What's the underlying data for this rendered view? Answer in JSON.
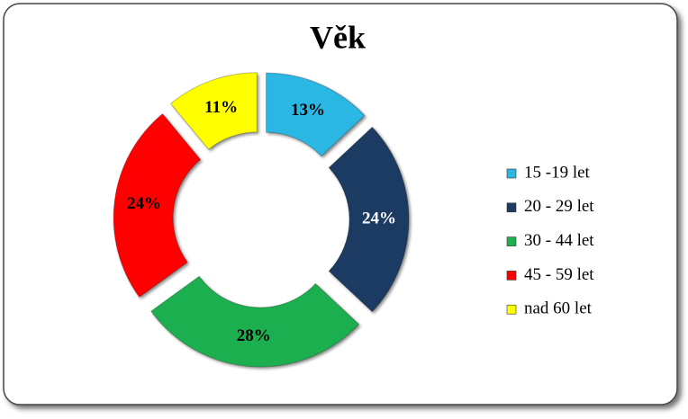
{
  "chart_data": {
    "type": "pie",
    "title": "Věk",
    "categories": [
      "15 -19 let",
      "20 - 29 let",
      "30 - 44 let",
      "45 - 59 let",
      "nad 60 let"
    ],
    "values": [
      13,
      24,
      28,
      24,
      11
    ],
    "value_labels": [
      "13%",
      "24%",
      "28%",
      "24%",
      "11%"
    ],
    "colors": [
      "#2ab7e3",
      "#1f3b63",
      "#1faf4f",
      "#ff0000",
      "#ffff00"
    ],
    "legend": "right"
  }
}
